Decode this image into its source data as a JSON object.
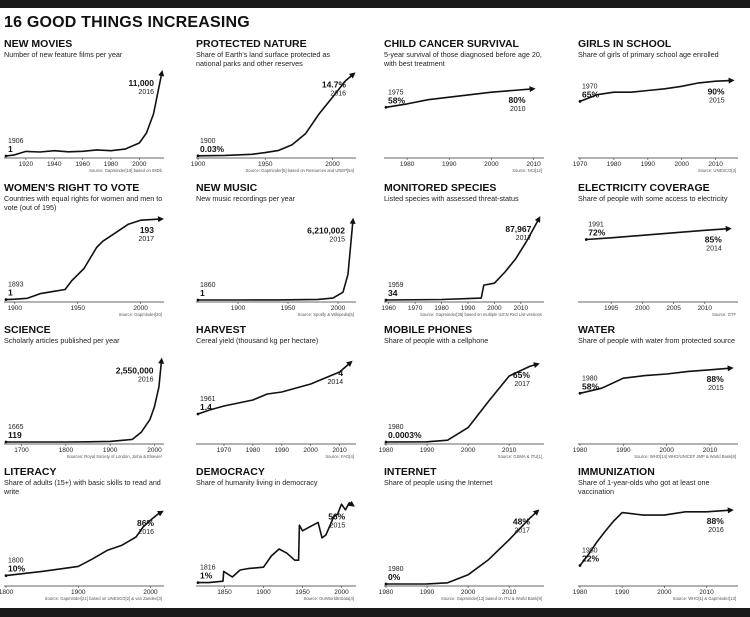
{
  "page_title": "16 GOOD THINGS INCREASING",
  "colors": {
    "line": "#111111",
    "text": "#111111",
    "background": "#ffffff"
  },
  "chart_data": [
    {
      "type": "line",
      "title": "NEW MOVIES",
      "subtitle": "Number of new feature films per year",
      "x": [
        1906,
        1912,
        1920,
        1930,
        1940,
        1950,
        1960,
        1970,
        1980,
        1990,
        2000,
        2005,
        2010,
        2016
      ],
      "y": [
        1,
        150,
        600,
        520,
        700,
        550,
        620,
        800,
        700,
        900,
        1700,
        3000,
        5500,
        11000
      ],
      "xlim": [
        1906,
        2016
      ],
      "ylim": [
        0,
        11000
      ],
      "xticks": [
        "1920",
        "1940",
        "1960",
        "1980",
        "2000"
      ],
      "start": {
        "value": "1",
        "year": "1906"
      },
      "end": {
        "value": "11,000",
        "year": "2016"
      },
      "source": "Source: Gapminder[19] based on IMDb"
    },
    {
      "type": "line",
      "title": "PROTECTED NATURE",
      "subtitle": "Share of Earth's land surface protected as national parks and other reserves",
      "x": [
        1900,
        1920,
        1940,
        1950,
        1960,
        1970,
        1980,
        1990,
        2000,
        2005,
        2010,
        2016
      ],
      "y": [
        0.03,
        0.1,
        0.3,
        0.6,
        1.0,
        2.0,
        4.0,
        7.5,
        10.5,
        12.0,
        13.5,
        14.7
      ],
      "xlim": [
        1900,
        2016
      ],
      "ylim": [
        0,
        15
      ],
      "xticks": [
        "1900",
        "1950",
        "2000"
      ],
      "start": {
        "value": "0.03%",
        "year": "1900"
      },
      "end": {
        "value": "14.7%",
        "year": "2016"
      },
      "source": "Source: Gapminder[5] based on Resources and UNEP[54]"
    },
    {
      "type": "line",
      "title": "CHILD CANCER SURVIVAL",
      "subtitle": "5-year survival of those diagnosed before age 20, with best treatment",
      "x": [
        1975,
        1980,
        1985,
        1990,
        1995,
        2000,
        2005,
        2010
      ],
      "y": [
        58,
        62,
        67,
        70,
        73,
        76,
        78,
        80
      ],
      "xlim": [
        1975,
        2012
      ],
      "ylim": [
        0,
        100
      ],
      "xticks": [
        "1980",
        "1990",
        "2000",
        "2010"
      ],
      "start": {
        "value": "58%",
        "year": "1975"
      },
      "end": {
        "value": "80%",
        "year": "2010"
      },
      "source": "Source: NCI[12]"
    },
    {
      "type": "line",
      "title": "GIRLS IN SCHOOL",
      "subtitle": "Share of girls of primary school age enrolled",
      "x": [
        1970,
        1975,
        1980,
        1985,
        1990,
        1995,
        2000,
        2005,
        2010,
        2015
      ],
      "y": [
        65,
        73,
        76,
        76,
        78,
        80,
        83,
        87,
        89,
        90
      ],
      "xlim": [
        1970,
        2016
      ],
      "ylim": [
        0,
        100
      ],
      "xticks": [
        "1970",
        "1980",
        "1990",
        "2000",
        "2010"
      ],
      "start": {
        "value": "65%",
        "year": "1970"
      },
      "end": {
        "value": "90%",
        "year": "2015"
      },
      "source": "Source: UNESCO[3]"
    },
    {
      "type": "line",
      "title": "WOMEN'S RIGHT TO VOTE",
      "subtitle": "Countries with equal rights for women and men to vote (out of 195)",
      "x": [
        1893,
        1900,
        1910,
        1920,
        1930,
        1940,
        1945,
        1950,
        1955,
        1960,
        1965,
        1970,
        1980,
        1990,
        2000,
        2017
      ],
      "y": [
        1,
        2,
        4,
        15,
        20,
        25,
        45,
        60,
        75,
        100,
        125,
        140,
        160,
        180,
        190,
        193
      ],
      "xlim": [
        1893,
        2017
      ],
      "ylim": [
        0,
        200
      ],
      "xticks": [
        "1900",
        "1950",
        "2000"
      ],
      "start": {
        "value": "1",
        "year": "1893"
      },
      "end": {
        "value": "193",
        "year": "2017"
      },
      "source": "Source: Gapminder[20]"
    },
    {
      "type": "line",
      "title": "NEW MUSIC",
      "subtitle": "New music recordings per year",
      "x": [
        1860,
        1900,
        1940,
        1960,
        1980,
        1995,
        2005,
        2010,
        2015
      ],
      "y": [
        1,
        1000,
        5000,
        20000,
        50000,
        150000,
        600000,
        2000000,
        6210002
      ],
      "xlim": [
        1860,
        2016
      ],
      "ylim": [
        0,
        6500000
      ],
      "xticks": [
        "1900",
        "1950",
        "2000"
      ],
      "start": {
        "value": "1",
        "year": "1860"
      },
      "end": {
        "value": "6,210,002",
        "year": "2015"
      },
      "source": "Source: Spotify & Wikipedia[5]"
    },
    {
      "type": "line",
      "title": "MONITORED SPECIES",
      "subtitle": "Listed species with assessed threat-status",
      "x": [
        1959,
        1980,
        1990,
        1995,
        1996,
        2000,
        2004,
        2008,
        2012,
        2017
      ],
      "y": [
        34,
        500,
        1500,
        2000,
        16000,
        18000,
        30000,
        44000,
        62000,
        87967
      ],
      "xlim": [
        1959,
        2018
      ],
      "ylim": [
        0,
        90000
      ],
      "xticks": [
        "1960",
        "1970",
        "1980",
        "1990",
        "2000",
        "2010"
      ],
      "start": {
        "value": "34",
        "year": "1959"
      },
      "end": {
        "value": "87,967",
        "year": "2017"
      },
      "source": "Source: Gapminder[36] based on multiple IUCN Red List versions"
    },
    {
      "type": "line",
      "title": "ELECTRICITY COVERAGE",
      "subtitle": "Share of people with some access to electricity",
      "x": [
        1991,
        1995,
        2000,
        2005,
        2010,
        2014
      ],
      "y": [
        72,
        74,
        77,
        80,
        83,
        85
      ],
      "xlim": [
        1990,
        2015
      ],
      "ylim": [
        0,
        100
      ],
      "xticks": [
        "1995",
        "2000",
        "2005",
        "2010"
      ],
      "start": {
        "value": "72%",
        "year": "1991"
      },
      "end": {
        "value": "85%",
        "year": "2014"
      },
      "source": "Source: GTF"
    },
    {
      "type": "line",
      "title": "SCIENCE",
      "subtitle": "Scholarly articles published per year",
      "x": [
        1665,
        1700,
        1800,
        1850,
        1900,
        1950,
        1970,
        1990,
        2000,
        2010,
        2016
      ],
      "y": [
        119,
        200,
        1000,
        5000,
        20000,
        80000,
        300000,
        700000,
        1100000,
        1700000,
        2550000
      ],
      "xlim": [
        1665,
        2017
      ],
      "ylim": [
        0,
        2600000
      ],
      "xticks": [
        "1700",
        "1800",
        "1900",
        "2000"
      ],
      "start": {
        "value": "119",
        "year": "1665"
      },
      "end": {
        "value": "2,550,000",
        "year": "2016"
      },
      "source": "Sources: Royal Society of London, Jinha & Elsevier"
    },
    {
      "type": "line",
      "title": "HARVEST",
      "subtitle": "Cereal yield (thousand kg per hectare)",
      "x": [
        1961,
        1965,
        1970,
        1975,
        1980,
        1985,
        1990,
        1995,
        2000,
        2005,
        2010,
        2014
      ],
      "y": [
        1.4,
        1.6,
        1.8,
        1.95,
        2.1,
        2.4,
        2.5,
        2.7,
        2.9,
        3.2,
        3.5,
        4.0
      ],
      "xlim": [
        1961,
        2015
      ],
      "ylim": [
        0,
        4.2
      ],
      "xticks": [
        "1970",
        "1980",
        "1990",
        "2000",
        "2010"
      ],
      "start": {
        "value": "1.4",
        "year": "1961"
      },
      "end": {
        "value": "4",
        "year": "2014"
      },
      "source": "Source: FAO[4]"
    },
    {
      "type": "line",
      "title": "MOBILE PHONES",
      "subtitle": "Share of people with a cellphone",
      "x": [
        1980,
        1990,
        1995,
        2000,
        2005,
        2010,
        2015,
        2017
      ],
      "y": [
        0.0003,
        0.2,
        1.5,
        12,
        34,
        55,
        63,
        65
      ],
      "xlim": [
        1980,
        2018
      ],
      "ylim": [
        0,
        70
      ],
      "xticks": [
        "1980",
        "1990",
        "2000",
        "2010"
      ],
      "start": {
        "value": "0.0003%",
        "year": "1980"
      },
      "end": {
        "value": "65%",
        "year": "2017"
      },
      "source": "Source: GSMA & ITU[1]"
    },
    {
      "type": "line",
      "title": "WATER",
      "subtitle": "Share of people with water from protected source",
      "x": [
        1980,
        1985,
        1990,
        1995,
        2000,
        2005,
        2010,
        2015
      ],
      "y": [
        58,
        64,
        76,
        79,
        81,
        84,
        86,
        88
      ],
      "xlim": [
        1980,
        2016
      ],
      "ylim": [
        0,
        100
      ],
      "xticks": [
        "1980",
        "1990",
        "2000",
        "2010"
      ],
      "start": {
        "value": "58%",
        "year": "1980"
      },
      "end": {
        "value": "88%",
        "year": "2015"
      },
      "source": "Source: WHO[14] WHO/UNICEF JMP & World Bank[8]"
    },
    {
      "type": "line",
      "title": "LITERACY",
      "subtitle": "Share of adults (15+) with basic skills to read and write",
      "x": [
        1800,
        1850,
        1900,
        1920,
        1940,
        1960,
        1980,
        1990,
        2000,
        2010,
        2016
      ],
      "y": [
        10,
        15,
        21,
        30,
        40,
        46,
        56,
        68,
        76,
        83,
        86
      ],
      "xlim": [
        1800,
        2016
      ],
      "ylim": [
        0,
        100
      ],
      "xticks": [
        "1800",
        "1900",
        "2000"
      ],
      "start": {
        "value": "10%",
        "year": "1800"
      },
      "end": {
        "value": "86%",
        "year": "2016"
      },
      "source": "Source: Gapminder[21] based on UNESCO[2] & van Zanden[3]"
    },
    {
      "type": "line",
      "title": "DEMOCRACY",
      "subtitle": "Share of humanity living in democracy",
      "x": [
        1816,
        1830,
        1848,
        1849,
        1860,
        1870,
        1880,
        1900,
        1910,
        1920,
        1930,
        1940,
        1945,
        1946,
        1950,
        1960,
        1970,
        1975,
        1980,
        1990,
        1995,
        2000,
        2005,
        2010,
        2015
      ],
      "y": [
        1,
        1,
        2,
        9,
        5,
        10,
        11,
        12,
        20,
        25,
        22,
        17,
        17,
        42,
        38,
        41,
        44,
        33,
        35,
        48,
        50,
        57,
        53,
        58,
        56
      ],
      "xlim": [
        1816,
        2016
      ],
      "ylim": [
        0,
        60
      ],
      "xticks": [
        "1850",
        "1900",
        "1950",
        "2000"
      ],
      "start": {
        "value": "1%",
        "year": "1816"
      },
      "end": {
        "value": "56%",
        "year": "2015"
      },
      "source": "Source: OurWorldInData[4]"
    },
    {
      "type": "line",
      "title": "INTERNET",
      "subtitle": "Share of people using the Internet",
      "x": [
        1980,
        1990,
        1995,
        2000,
        2005,
        2010,
        2015,
        2017
      ],
      "y": [
        0,
        0.05,
        0.8,
        6,
        16,
        29,
        43,
        48
      ],
      "xlim": [
        1980,
        2018
      ],
      "ylim": [
        0,
        55
      ],
      "xticks": [
        "1980",
        "1990",
        "2000",
        "2010"
      ],
      "start": {
        "value": "0%",
        "year": "1980"
      },
      "end": {
        "value": "48%",
        "year": "2017"
      },
      "source": "Source: Gapminder[12] based on ITU & World Bank[9]"
    },
    {
      "type": "line",
      "title": "IMMUNIZATION",
      "subtitle": "Share of 1-year-olds who got at least one vaccination",
      "x": [
        1980,
        1982,
        1984,
        1986,
        1988,
        1990,
        1995,
        2000,
        2005,
        2010,
        2016
      ],
      "y": [
        22,
        35,
        50,
        63,
        75,
        85,
        82,
        82,
        86,
        86,
        88
      ],
      "xlim": [
        1980,
        2017
      ],
      "ylim": [
        0,
        100
      ],
      "xticks": [
        "1980",
        "1990",
        "2000",
        "2010"
      ],
      "start": {
        "value": "22%",
        "year": "1980"
      },
      "end": {
        "value": "88%",
        "year": "2016"
      },
      "source": "Source: WHO[1] & Gapminder[13]"
    }
  ]
}
